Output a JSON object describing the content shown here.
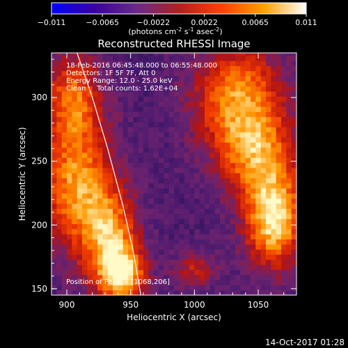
{
  "chart_data": {
    "type": "heatmap",
    "title": "Reconstructed RHESSI Image",
    "xlabel": "Heliocentric X (arcsec)",
    "ylabel": "Heliocentric Y (arcsec)",
    "xlim": [
      888,
      1080
    ],
    "ylim": [
      145,
      335
    ],
    "x_ticks": [
      900,
      950,
      1000,
      1050
    ],
    "y_ticks": [
      150,
      200,
      250,
      300
    ],
    "colorbar": {
      "min": -0.011,
      "max": 0.011,
      "tick_labels": [
        "-0.011",
        "-0.0065",
        "-0.0022",
        "0.0022",
        "0.0065",
        "0.011"
      ],
      "label": "(photons cm",
      "label_parts": [
        "(photons cm",
        "-2",
        " s",
        "-1",
        " asec",
        "-2",
        ")"
      ],
      "colors": [
        "#0000ff",
        "#3a00a0",
        "#6a2a8a",
        "#b02020",
        "#ff4000",
        "#ffa000",
        "#ffffff"
      ]
    },
    "annotations": [
      "18-Feb-2016 06:45:48.000 to 06:55:48.000",
      "Detectors: 1F 5F 7F, Att 0",
      "Energy Range: 12.0 - 25.0 keV",
      "Clean     Total counts: 1.62E+04"
    ],
    "peak_label": "Position of Peak = [1068,206]",
    "peak": [
      1068,
      206
    ],
    "limb_curve": [
      [
        908,
        335
      ],
      [
        920,
        300
      ],
      [
        932,
        260
      ],
      [
        944,
        215
      ],
      [
        952,
        180
      ],
      [
        958,
        145
      ]
    ],
    "blobs": [
      {
        "x": 908,
        "y": 230,
        "sx": 20,
        "sy": 35,
        "a": 1.0
      },
      {
        "x": 935,
        "y": 185,
        "sx": 15,
        "sy": 28,
        "a": 1.0
      },
      {
        "x": 945,
        "y": 160,
        "sx": 12,
        "sy": 14,
        "a": 0.9
      },
      {
        "x": 905,
        "y": 300,
        "sx": 16,
        "sy": 25,
        "a": 0.8
      },
      {
        "x": 1035,
        "y": 300,
        "sx": 25,
        "sy": 28,
        "a": 1.0
      },
      {
        "x": 1062,
        "y": 205,
        "sx": 16,
        "sy": 26,
        "a": 1.3
      },
      {
        "x": 1048,
        "y": 255,
        "sx": 22,
        "sy": 22,
        "a": 0.8
      },
      {
        "x": 1000,
        "y": 165,
        "sx": 12,
        "sy": 10,
        "a": 0.5
      }
    ],
    "footer_date": "14-Oct-2017 01:28"
  }
}
